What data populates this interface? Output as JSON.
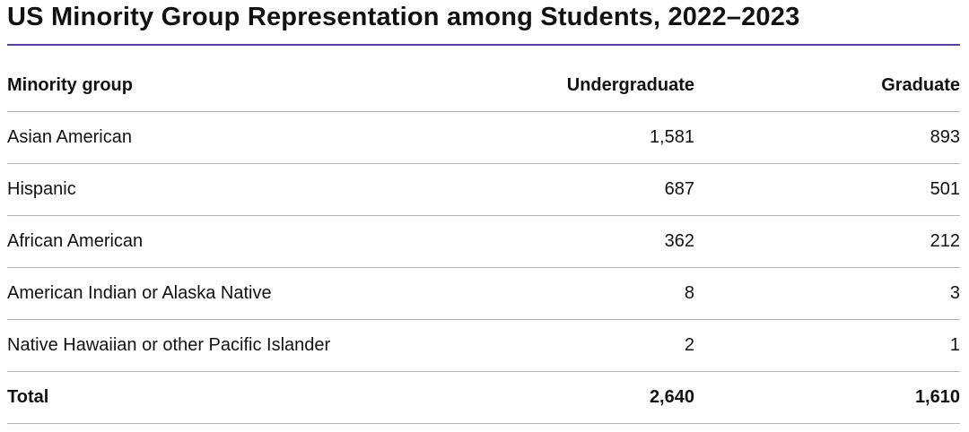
{
  "header": {
    "title": "US Minority Group Representation among Students, 2022–2023"
  },
  "table": {
    "columns": [
      "Minority group",
      "Undergraduate",
      "Graduate"
    ],
    "rows": [
      [
        "Asian American",
        "1,581",
        "893"
      ],
      [
        "Hispanic",
        "687",
        "501"
      ],
      [
        "African American",
        "362",
        "212"
      ],
      [
        "American Indian or Alaska Native",
        "8",
        "3"
      ],
      [
        "Native Hawaiian or other Pacific Islander",
        "2",
        "1"
      ]
    ],
    "total": [
      "Total",
      "2,640",
      "1,610"
    ]
  }
}
